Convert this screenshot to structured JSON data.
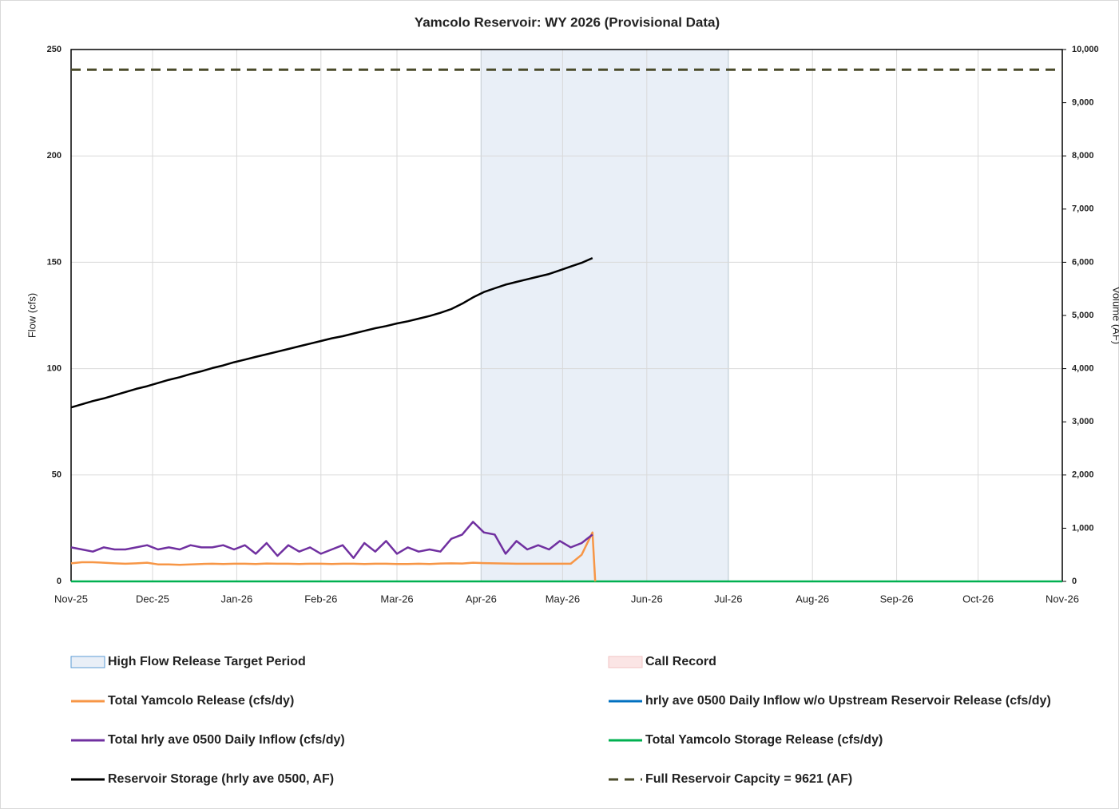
{
  "chart_data": {
    "type": "line",
    "title": "Yamcolo Reservoir:  WY 2026 (Provisional Data)",
    "y_label": "Flow (cfs)",
    "y2_label": "Volume (AF)",
    "xlim": [
      0,
      365
    ],
    "xticks": [
      {
        "value": 0,
        "label": "Nov-25"
      },
      {
        "value": 30,
        "label": "Dec-25"
      },
      {
        "value": 61,
        "label": "Jan-26"
      },
      {
        "value": 92,
        "label": "Feb-26"
      },
      {
        "value": 120,
        "label": "Mar-26"
      },
      {
        "value": 151,
        "label": "Apr-26"
      },
      {
        "value": 181,
        "label": "May-26"
      },
      {
        "value": 212,
        "label": "Jun-26"
      },
      {
        "value": 242,
        "label": "Jul-26"
      },
      {
        "value": 273,
        "label": "Aug-26"
      },
      {
        "value": 304,
        "label": "Sep-26"
      },
      {
        "value": 334,
        "label": "Oct-26"
      },
      {
        "value": 365,
        "label": "Nov-26"
      }
    ],
    "ylim": [
      0,
      250
    ],
    "yticks": [
      0,
      50,
      100,
      150,
      200,
      250
    ],
    "y2lim": [
      0,
      10000
    ],
    "y2ticks": [
      0,
      {
        "value": 1000,
        "label": "1,000"
      },
      {
        "value": 2000,
        "label": "2,000"
      },
      {
        "value": 3000,
        "label": "3,000"
      },
      {
        "value": 4000,
        "label": "4,000"
      },
      {
        "value": 5000,
        "label": "5,000"
      },
      {
        "value": 6000,
        "label": "6,000"
      },
      {
        "value": 7000,
        "label": "7,000"
      },
      {
        "value": 8000,
        "label": "8,000"
      },
      {
        "value": 9000,
        "label": "9,000"
      },
      {
        "value": 10000,
        "label": "10,000"
      }
    ],
    "grid": true,
    "series": [
      {
        "name": "High Flow Release Target Period",
        "kind": "band",
        "color": "#5b9bd5",
        "x": [
          151,
          242
        ]
      },
      {
        "name": "Call Record",
        "kind": "band",
        "color": "#f2c4c4",
        "x": []
      },
      {
        "name": "Total Yamcolo Release (cfs/dy)",
        "kind": "line",
        "color": "#f79646",
        "x": [
          0,
          4,
          8,
          12,
          16,
          20,
          24,
          28,
          32,
          36,
          40,
          44,
          48,
          52,
          56,
          60,
          64,
          68,
          72,
          76,
          80,
          84,
          88,
          92,
          96,
          100,
          104,
          108,
          112,
          116,
          120,
          124,
          128,
          132,
          136,
          140,
          144,
          148,
          152,
          156,
          160,
          164,
          168,
          172,
          176,
          180,
          184,
          188,
          192,
          193
        ],
        "values": [
          8.5,
          9,
          9,
          8.8,
          8.5,
          8.3,
          8.5,
          8.8,
          8,
          8,
          7.8,
          8,
          8.2,
          8.3,
          8.2,
          8.3,
          8.3,
          8.2,
          8.4,
          8.3,
          8.3,
          8.2,
          8.3,
          8.3,
          8.2,
          8.3,
          8.3,
          8.2,
          8.3,
          8.3,
          8.2,
          8.2,
          8.3,
          8.2,
          8.4,
          8.5,
          8.4,
          8.8,
          8.6,
          8.5,
          8.4,
          8.3,
          8.3,
          8.3,
          8.3,
          8.3,
          8.3,
          12.5,
          23,
          0
        ]
      },
      {
        "name": "hrly ave 0500 Daily Inflow w/o Upstream Reservoir Release (cfs/dy)",
        "kind": "line",
        "color": "#0070c0",
        "x": [],
        "values": []
      },
      {
        "name": "Total hrly ave 0500 Daily Inflow (cfs/dy)",
        "kind": "line",
        "color": "#7030a0",
        "x": [
          0,
          4,
          8,
          12,
          16,
          20,
          24,
          28,
          32,
          36,
          40,
          44,
          48,
          52,
          56,
          60,
          64,
          68,
          72,
          76,
          80,
          84,
          88,
          92,
          96,
          100,
          104,
          108,
          112,
          116,
          120,
          124,
          128,
          132,
          136,
          140,
          144,
          148,
          152,
          156,
          160,
          164,
          168,
          172,
          176,
          180,
          184,
          188,
          192
        ],
        "values": [
          16,
          15,
          14,
          16,
          15,
          15,
          16,
          17,
          15,
          16,
          15,
          17,
          16,
          16,
          17,
          15,
          17,
          13,
          18,
          12,
          17,
          14,
          16,
          13,
          15,
          17,
          11,
          18,
          14,
          19,
          13,
          16,
          14,
          15,
          14,
          20,
          22,
          28,
          23,
          22,
          13,
          19,
          15,
          17,
          15,
          19,
          16,
          18,
          22
        ]
      },
      {
        "name": "Total Yamcolo Storage Release (cfs/dy)",
        "kind": "line",
        "color": "#00b050",
        "x": [
          0,
          365
        ],
        "values": [
          0,
          0
        ]
      },
      {
        "name": "Reservoir Storage (hrly ave 0500, AF)",
        "kind": "line",
        "color": "#000000",
        "axis": "y2",
        "x": [
          0,
          4,
          8,
          12,
          16,
          20,
          24,
          28,
          32,
          36,
          40,
          44,
          48,
          52,
          56,
          60,
          64,
          68,
          72,
          76,
          80,
          84,
          88,
          92,
          96,
          100,
          104,
          108,
          112,
          116,
          120,
          124,
          128,
          132,
          136,
          140,
          144,
          148,
          152,
          156,
          160,
          164,
          168,
          172,
          176,
          180,
          184,
          188,
          192
        ],
        "values": [
          3270,
          3330,
          3390,
          3440,
          3500,
          3560,
          3620,
          3670,
          3730,
          3790,
          3840,
          3900,
          3950,
          4010,
          4060,
          4120,
          4170,
          4220,
          4270,
          4320,
          4370,
          4420,
          4470,
          4520,
          4570,
          4610,
          4660,
          4710,
          4760,
          4800,
          4850,
          4890,
          4940,
          4990,
          5050,
          5120,
          5220,
          5340,
          5440,
          5510,
          5580,
          5630,
          5680,
          5730,
          5780,
          5850,
          5920,
          5990,
          6080
        ]
      },
      {
        "name": "Full Reservoir Capcity = 9621 (AF)",
        "kind": "line",
        "dash": true,
        "color": "#4a4a2a",
        "axis": "y2",
        "x": [
          0,
          365
        ],
        "values": [
          9621,
          9621
        ]
      }
    ]
  }
}
